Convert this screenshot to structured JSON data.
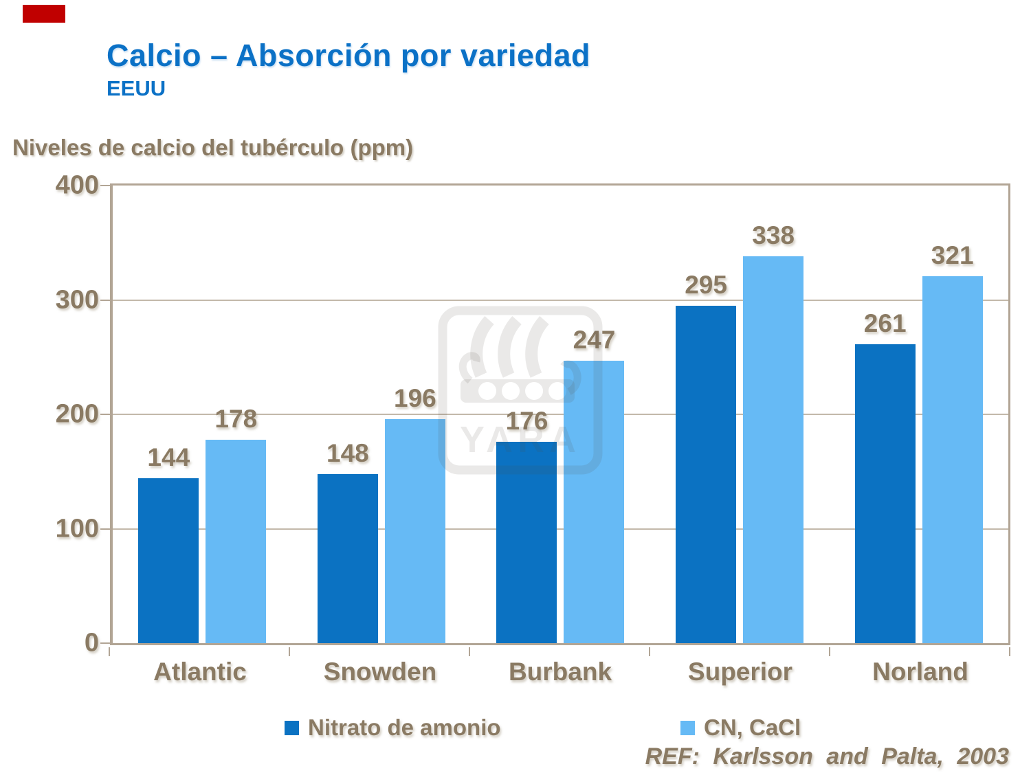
{
  "header": {
    "title": "Calcio – Absorción por variedad",
    "subtitle": "EEUU"
  },
  "axis_title": "Niveles de calcio del tubérculo (ppm)",
  "footer": {
    "ref": "REF: Karlsson and Palta, 2003"
  },
  "watermark": {
    "text": "YARA"
  },
  "colors": {
    "series1": "#0b72c2",
    "series2": "#66baf5",
    "title_blue": "#0b71c6",
    "text_brown": "#8a7a63",
    "axis_tan": "#b2a595",
    "grid_tan": "#c3b9aa",
    "brand_red": "#c00000"
  },
  "chart_data": {
    "type": "bar",
    "title": "Niveles de calcio del tubérculo (ppm)",
    "categories": [
      "Atlantic",
      "Snowden",
      "Burbank",
      "Superior",
      "Norland"
    ],
    "series": [
      {
        "name": "Nitrato de amonio",
        "color_key": "series1",
        "values": [
          144,
          148,
          176,
          295,
          261
        ]
      },
      {
        "name": "CN, CaCl",
        "color_key": "series2",
        "values": [
          178,
          196,
          247,
          338,
          321
        ]
      }
    ],
    "ylim": [
      0,
      400
    ],
    "yticks": [
      0,
      100,
      200,
      300,
      400
    ],
    "grid": true,
    "legend_position": "bottom"
  }
}
